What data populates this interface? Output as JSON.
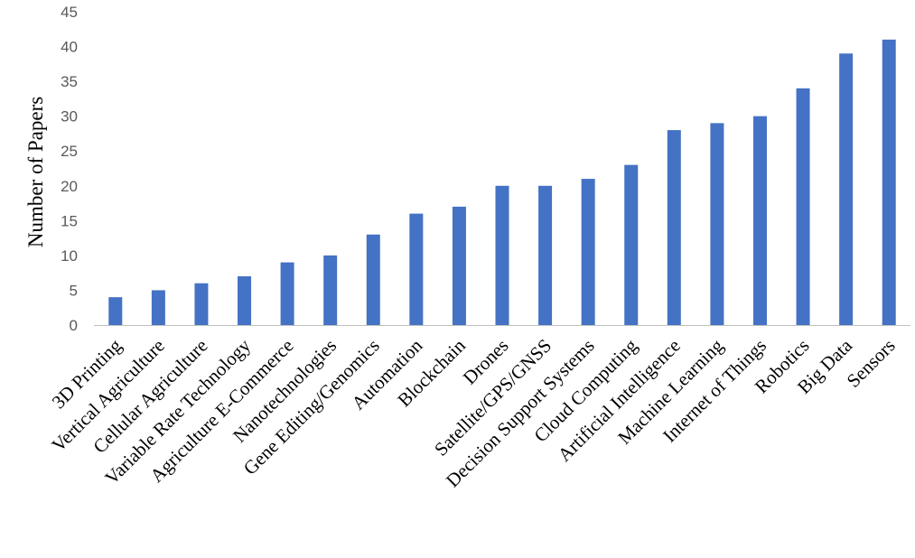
{
  "chart_data": {
    "type": "bar",
    "title": "",
    "xlabel": "",
    "ylabel": "Number of Papers",
    "ylim": [
      0,
      45
    ],
    "yticks": [
      0,
      5,
      10,
      15,
      20,
      25,
      30,
      35,
      40,
      45
    ],
    "grid": false,
    "legend": "none",
    "bar_color": "#4472C4",
    "axis_color": "#BFBFBF",
    "categories": [
      "3D Printing",
      "Vertical Agriculture",
      "Cellular Agriculture",
      "Variable Rate Technology",
      "Agriculture E-Commerce",
      "Nanotechnologies",
      "Gene Editing/Genomics",
      "Automation",
      "Blockchain",
      "Drones",
      "Satellite/GPS/GNSS",
      "Decision Support Systems",
      "Cloud Computing",
      "Artificial Intelligence",
      "Machine Learning",
      "Internet of Things",
      "Robotics",
      "Big Data",
      "Sensors"
    ],
    "values": [
      4,
      5,
      6,
      7,
      9,
      10,
      13,
      16,
      17,
      20,
      20,
      21,
      23,
      28,
      29,
      30,
      34,
      39,
      41
    ]
  }
}
